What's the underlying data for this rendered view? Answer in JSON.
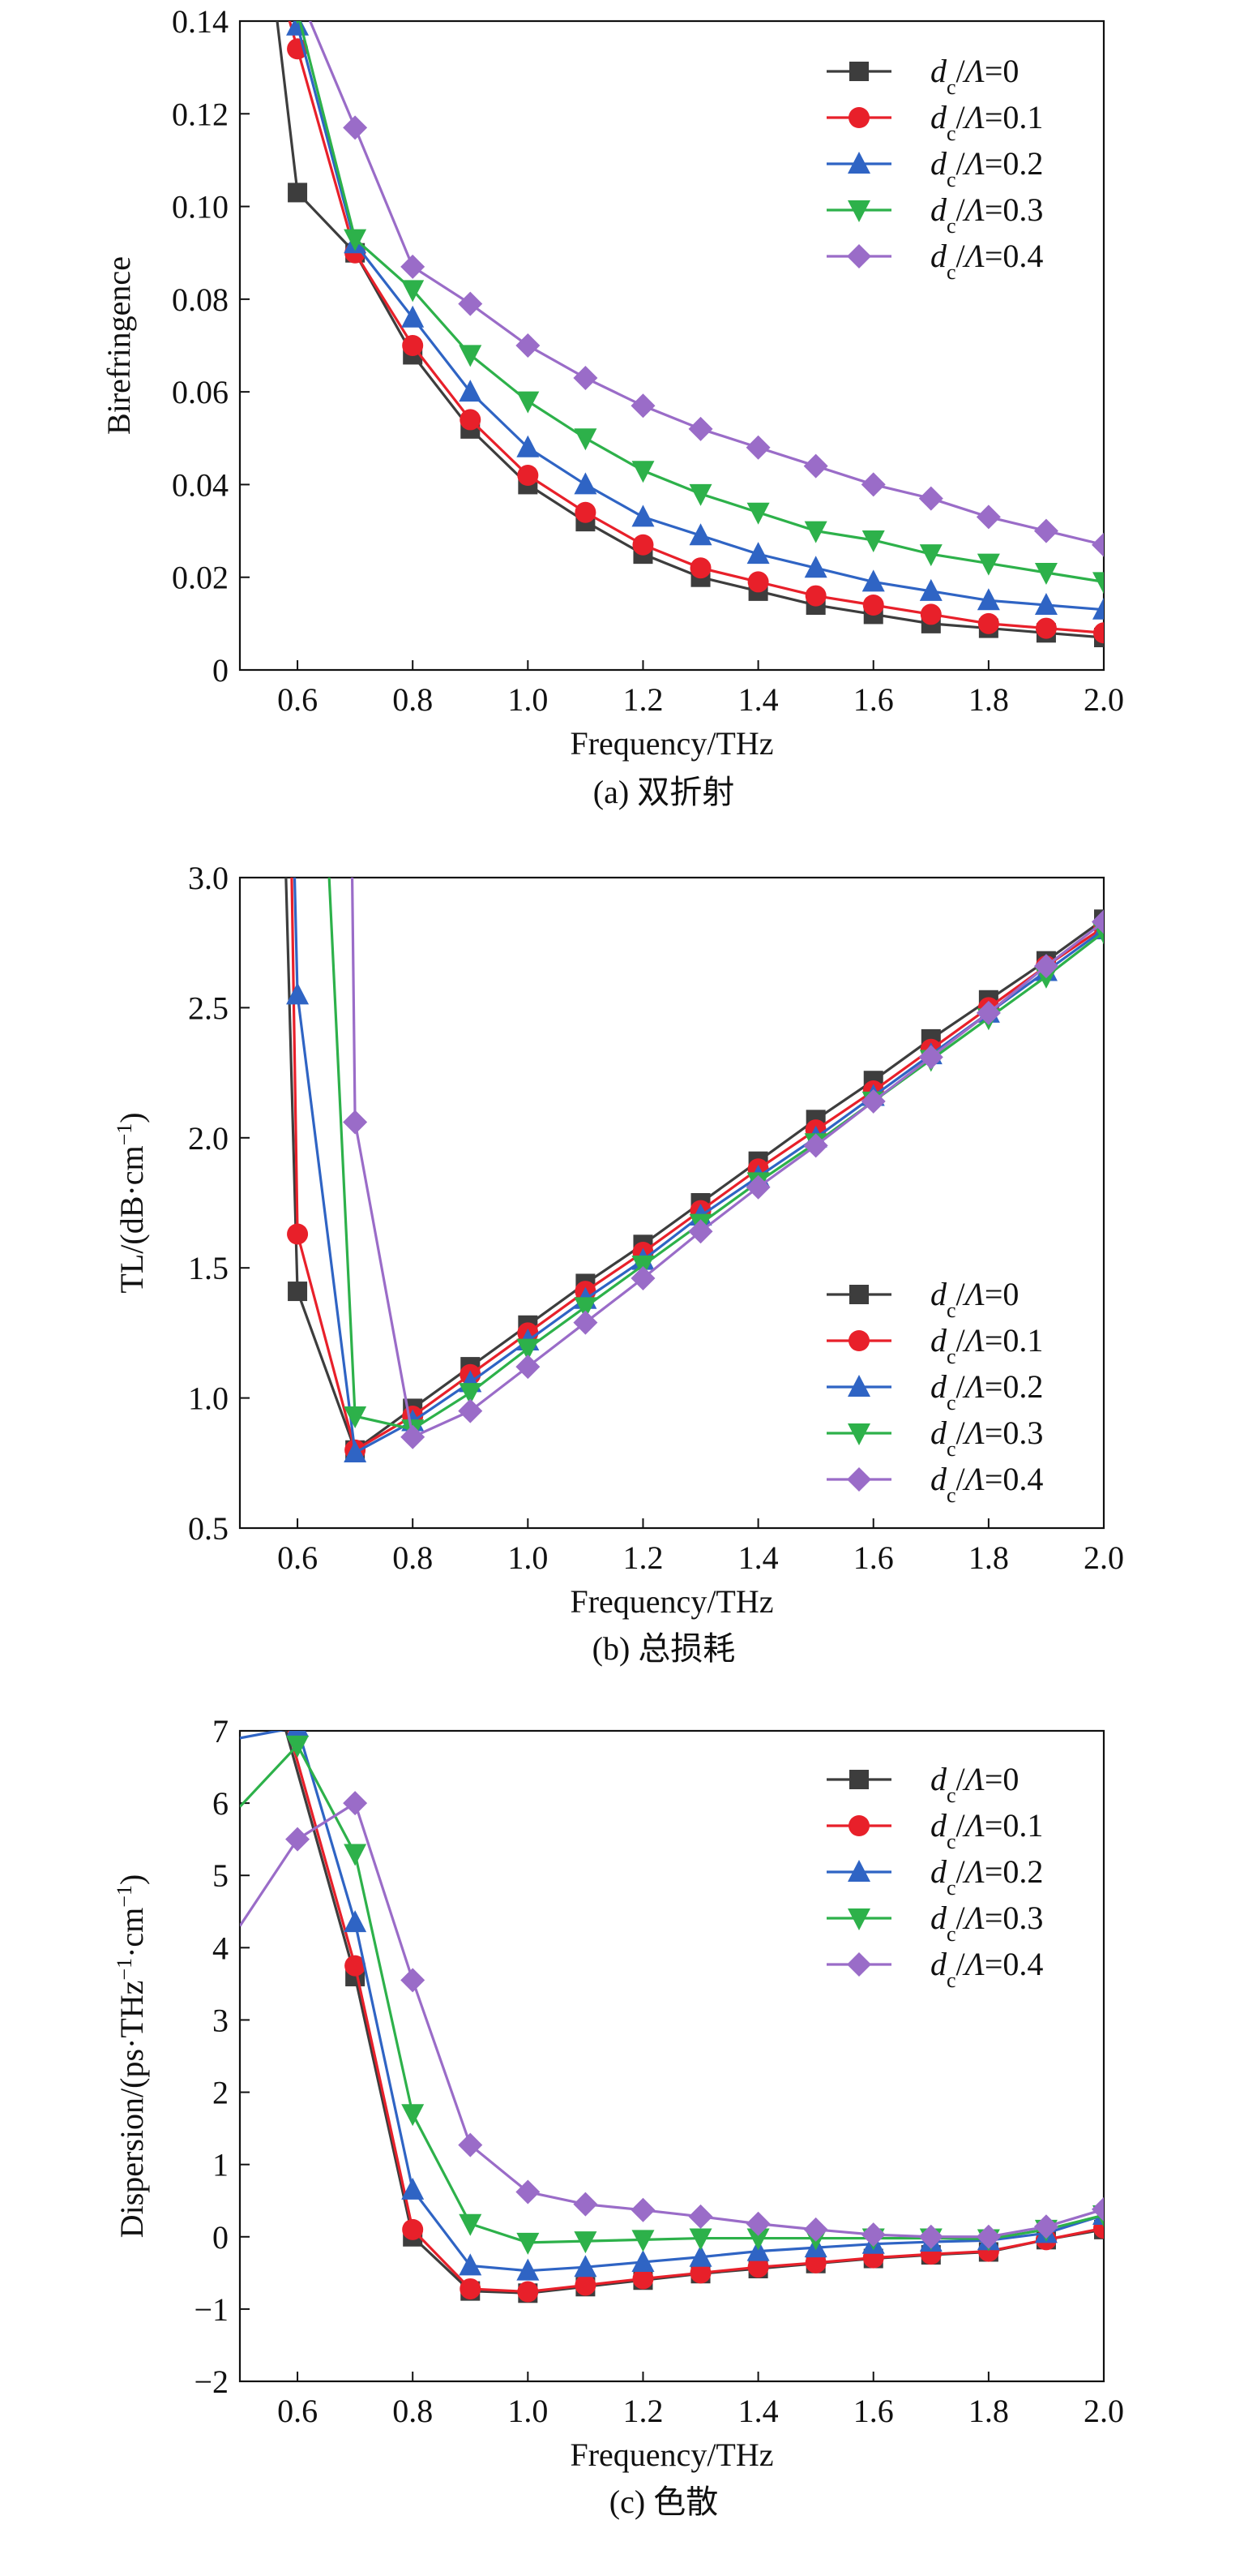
{
  "colors": {
    "s0": "#3d3d3d",
    "s1": "#e8202a",
    "s2": "#2f64c4",
    "s3": "#2db14a",
    "s4": "#9a6cc8"
  },
  "chart_data": [
    {
      "type": "line",
      "caption": "(a) 双折射",
      "xlabel": "Frequency/THz",
      "ylabel": "Birefringence",
      "xlim": [
        0.5,
        2.0
      ],
      "ylim": [
        0,
        0.14
      ],
      "xticks": [
        "0.6",
        "0.8",
        "1.0",
        "1.2",
        "1.4",
        "1.6",
        "1.8",
        "2.0"
      ],
      "yticks": [
        "0",
        "0.02",
        "0.04",
        "0.06",
        "0.08",
        "0.10",
        "0.12",
        "0.14"
      ],
      "legend_position": "top-right",
      "x": [
        0.6,
        0.7,
        0.8,
        0.9,
        1.0,
        1.1,
        1.2,
        1.3,
        1.4,
        1.5,
        1.6,
        1.7,
        1.8,
        1.9,
        2.0
      ],
      "series": [
        {
          "name": "dc/Λ=0",
          "marker": "square",
          "color": "#3d3d3d",
          "pre": [
            0.56,
            0.145
          ],
          "values": [
            0.103,
            0.09,
            0.068,
            0.052,
            0.04,
            0.032,
            0.025,
            0.02,
            0.017,
            0.014,
            0.012,
            0.01,
            0.009,
            0.008,
            0.007
          ]
        },
        {
          "name": "dc/Λ=0.1",
          "marker": "circle",
          "color": "#e8202a",
          "pre": [
            0.575,
            0.145
          ],
          "values": [
            0.134,
            0.09,
            0.07,
            0.054,
            0.042,
            0.034,
            0.027,
            0.022,
            0.019,
            0.016,
            0.014,
            0.012,
            0.01,
            0.009,
            0.008
          ]
        },
        {
          "name": "dc/Λ=0.2",
          "marker": "triangle-up",
          "color": "#2f64c4",
          "pre": null,
          "values": [
            0.139,
            0.092,
            0.076,
            0.06,
            0.048,
            0.04,
            0.033,
            0.029,
            0.025,
            0.022,
            0.019,
            0.017,
            0.015,
            0.014,
            0.013
          ]
        },
        {
          "name": "dc/Λ=0.3",
          "marker": "triangle-down",
          "color": "#2db14a",
          "pre": null,
          "values": [
            0.142,
            0.093,
            0.082,
            0.068,
            0.058,
            0.05,
            0.043,
            0.038,
            0.034,
            0.03,
            0.028,
            0.025,
            0.023,
            0.021,
            0.019
          ]
        },
        {
          "name": "dc/Λ=0.4",
          "marker": "diamond",
          "color": "#9a6cc8",
          "pre": [
            0.605,
            0.145
          ],
          "values": [
            null,
            0.117,
            0.087,
            0.079,
            0.07,
            0.063,
            0.057,
            0.052,
            0.048,
            0.044,
            0.04,
            0.037,
            0.033,
            0.03,
            0.027
          ]
        }
      ]
    },
    {
      "type": "line",
      "caption": "(b) 总损耗",
      "xlabel": "Frequency/THz",
      "ylabel": "TL/(dB·cm−1)",
      "xlim": [
        0.5,
        2.0
      ],
      "ylim": [
        0.5,
        3.0
      ],
      "xticks": [
        "0.6",
        "0.8",
        "1.0",
        "1.2",
        "1.4",
        "1.6",
        "1.8",
        "2.0"
      ],
      "yticks": [
        "0.5",
        "1.0",
        "1.5",
        "2.0",
        "2.5",
        "3.0"
      ],
      "legend_position": "bottom-right",
      "x": [
        0.6,
        0.7,
        0.8,
        0.9,
        1.0,
        1.1,
        1.2,
        1.3,
        1.4,
        1.5,
        1.6,
        1.7,
        1.8,
        1.9,
        2.0
      ],
      "series": [
        {
          "name": "dc/Λ=0",
          "marker": "square",
          "color": "#3d3d3d",
          "pre": [
            0.58,
            3.0
          ],
          "values": [
            1.41,
            0.8,
            0.96,
            1.12,
            1.28,
            1.44,
            1.59,
            1.75,
            1.91,
            2.07,
            2.22,
            2.38,
            2.53,
            2.68,
            2.84
          ]
        },
        {
          "name": "dc/Λ=0.1",
          "marker": "circle",
          "color": "#e8202a",
          "pre": [
            0.59,
            3.0
          ],
          "values": [
            1.63,
            0.8,
            0.93,
            1.09,
            1.25,
            1.41,
            1.56,
            1.72,
            1.88,
            2.03,
            2.18,
            2.34,
            2.5,
            2.66,
            2.81
          ]
        },
        {
          "name": "dc/Λ=0.2",
          "marker": "triangle-up",
          "color": "#2f64c4",
          "pre": [
            0.595,
            3.0
          ],
          "values": [
            2.55,
            0.79,
            0.91,
            1.06,
            1.22,
            1.38,
            1.53,
            1.7,
            1.85,
            2.0,
            2.16,
            2.32,
            2.48,
            2.64,
            2.8
          ]
        },
        {
          "name": "dc/Λ=0.3",
          "marker": "triangle-down",
          "color": "#2db14a",
          "pre": [
            0.655,
            3.0
          ],
          "values": [
            null,
            0.93,
            0.88,
            1.02,
            1.19,
            1.35,
            1.51,
            1.67,
            1.83,
            1.98,
            2.14,
            2.3,
            2.46,
            2.62,
            2.79
          ]
        },
        {
          "name": "dc/Λ=0.4",
          "marker": "diamond",
          "color": "#9a6cc8",
          "pre": [
            0.695,
            3.0
          ],
          "values": [
            null,
            2.06,
            0.85,
            0.95,
            1.12,
            1.29,
            1.46,
            1.64,
            1.81,
            1.97,
            2.14,
            2.31,
            2.48,
            2.66,
            2.83
          ]
        }
      ]
    },
    {
      "type": "line",
      "caption": "(c) 色散",
      "xlabel": "Frequency/THz",
      "ylabel": "Dispersion/(ps·THz−1·cm−1)",
      "xlim": [
        0.5,
        2.0
      ],
      "ylim": [
        -2,
        7
      ],
      "xticks": [
        "0.6",
        "0.8",
        "1.0",
        "1.2",
        "1.4",
        "1.6",
        "1.8",
        "2.0"
      ],
      "yticks": [
        "−2",
        "−1",
        "0",
        "1",
        "2",
        "3",
        "4",
        "5",
        "6",
        "7"
      ],
      "legend_position": "top-right",
      "x": [
        0.6,
        0.7,
        0.8,
        0.9,
        1.0,
        1.1,
        1.2,
        1.3,
        1.4,
        1.5,
        1.6,
        1.7,
        1.8,
        1.9,
        2.0
      ],
      "series": [
        {
          "name": "dc/Λ=0",
          "marker": "square",
          "color": "#3d3d3d",
          "pre": [
            0.58,
            7.0
          ],
          "values": [
            null,
            3.6,
            0.0,
            -0.75,
            -0.78,
            -0.69,
            -0.6,
            -0.51,
            -0.44,
            -0.37,
            -0.3,
            -0.25,
            -0.21,
            -0.04,
            0.1
          ]
        },
        {
          "name": "dc/Λ=0.1",
          "marker": "circle",
          "color": "#e8202a",
          "pre": [
            0.585,
            7.0
          ],
          "values": [
            null,
            3.75,
            0.1,
            -0.72,
            -0.76,
            -0.67,
            -0.58,
            -0.5,
            -0.42,
            -0.36,
            -0.29,
            -0.24,
            -0.2,
            -0.04,
            0.12
          ]
        },
        {
          "name": "dc/Λ=0.2",
          "marker": "triangle-up",
          "color": "#2f64c4",
          "pre": [
            0.5,
            6.9
          ],
          "values": [
            7.05,
            4.35,
            0.65,
            -0.4,
            -0.47,
            -0.42,
            -0.35,
            -0.28,
            -0.2,
            -0.15,
            -0.1,
            -0.07,
            -0.05,
            0.05,
            0.3
          ]
        },
        {
          "name": "dc/Λ=0.3",
          "marker": "triangle-down",
          "color": "#2db14a",
          "pre": [
            0.5,
            5.95
          ],
          "values": [
            6.8,
            5.3,
            1.7,
            0.18,
            -0.08,
            -0.06,
            -0.04,
            -0.02,
            -0.02,
            -0.02,
            -0.02,
            -0.02,
            -0.03,
            0.1,
            0.3
          ]
        },
        {
          "name": "dc/Λ=0.4",
          "marker": "diamond",
          "color": "#9a6cc8",
          "pre": [
            0.5,
            4.3
          ],
          "values": [
            5.5,
            6.0,
            3.55,
            1.27,
            0.62,
            0.45,
            0.37,
            0.28,
            0.18,
            0.1,
            0.03,
            0.0,
            0.0,
            0.14,
            0.38
          ]
        }
      ]
    }
  ]
}
